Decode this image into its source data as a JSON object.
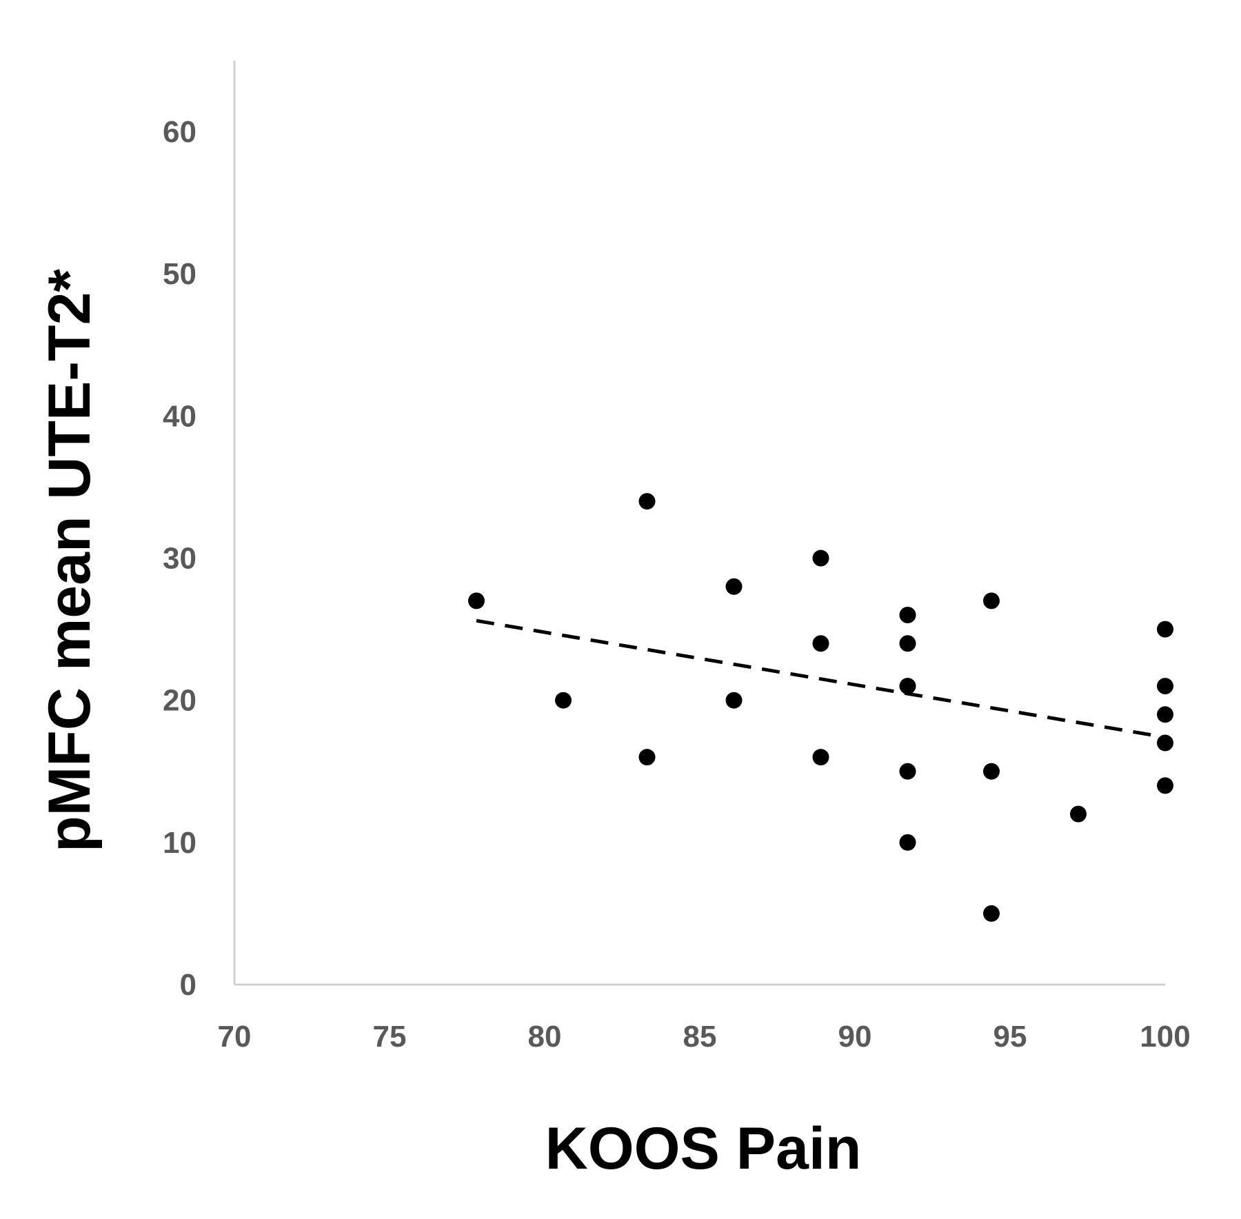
{
  "chart_data": {
    "type": "scatter",
    "title": "",
    "xlabel": "KOOS Pain",
    "ylabel": "pMFC mean UTE-T2*",
    "xlim": [
      70,
      100
    ],
    "ylim": [
      0,
      65
    ],
    "xticks": [
      70,
      75,
      80,
      85,
      90,
      95,
      100
    ],
    "yticks": [
      0,
      10,
      20,
      30,
      40,
      50,
      60
    ],
    "grid": false,
    "legend": "none",
    "point_color": "#000000",
    "series": [
      {
        "points": [
          {
            "x": 77.8,
            "y": 27
          },
          {
            "x": 80.6,
            "y": 20
          },
          {
            "x": 83.3,
            "y": 34
          },
          {
            "x": 83.3,
            "y": 16
          },
          {
            "x": 86.1,
            "y": 28
          },
          {
            "x": 86.1,
            "y": 20
          },
          {
            "x": 88.9,
            "y": 30
          },
          {
            "x": 88.9,
            "y": 24
          },
          {
            "x": 88.9,
            "y": 16
          },
          {
            "x": 91.7,
            "y": 26
          },
          {
            "x": 91.7,
            "y": 24
          },
          {
            "x": 91.7,
            "y": 21
          },
          {
            "x": 91.7,
            "y": 15
          },
          {
            "x": 91.7,
            "y": 10
          },
          {
            "x": 94.4,
            "y": 27
          },
          {
            "x": 94.4,
            "y": 15
          },
          {
            "x": 94.4,
            "y": 5
          },
          {
            "x": 97.2,
            "y": 12
          },
          {
            "x": 100,
            "y": 25
          },
          {
            "x": 100,
            "y": 21
          },
          {
            "x": 100,
            "y": 19
          },
          {
            "x": 100,
            "y": 17
          },
          {
            "x": 100,
            "y": 14
          }
        ]
      }
    ],
    "trendline": {
      "style": "dashed",
      "x": [
        77.8,
        100
      ],
      "y": [
        25.6,
        17.4
      ]
    }
  }
}
